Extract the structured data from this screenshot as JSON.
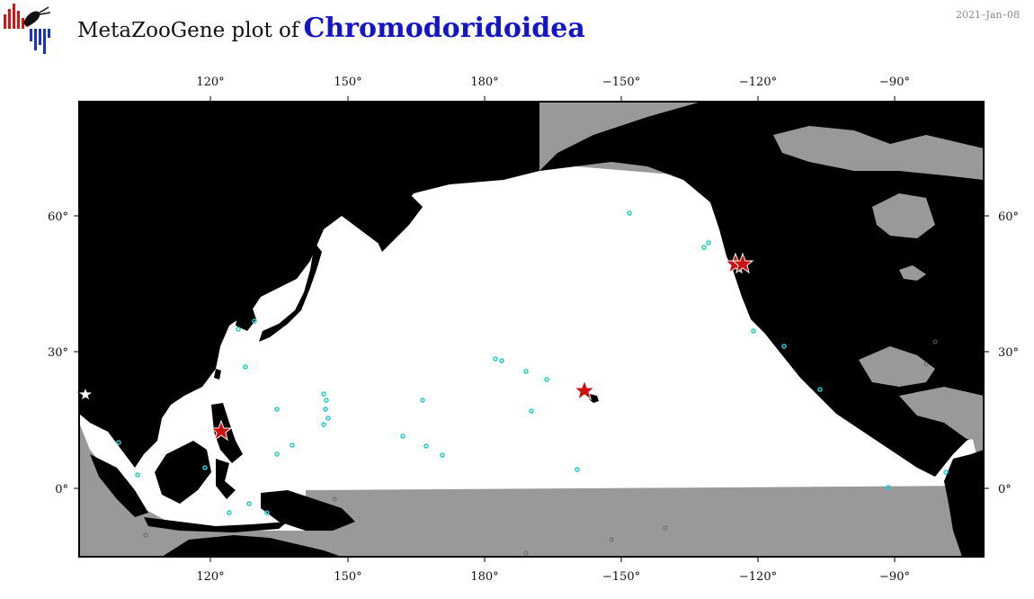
{
  "header": {
    "title_prefix": "MetaZooGene plot of",
    "taxon": "Chromodoridoidea",
    "date": "2021–Jan–08"
  },
  "map": {
    "top_lon_labels": [
      "120°",
      "150°",
      "180°",
      "−150°",
      "−120°",
      "−90°"
    ],
    "bottom_lon_labels": [
      "120°",
      "150°",
      "180°",
      "−150°",
      "−120°",
      "−90°"
    ],
    "left_lat_labels": [
      "60°",
      "30°",
      "0°"
    ],
    "right_lat_labels": [
      "60°",
      "30°",
      "0°"
    ],
    "colors": {
      "land": "#000000",
      "unsampled_ocean": "#999999",
      "sampled_ocean": "#ffffff",
      "record_star": "#cc1111",
      "sample_circle": "#22cccc",
      "grey_circle": "#666666",
      "title_accent": "#1515c8"
    },
    "legend_icons": [
      "red-star-icon",
      "cyan-circle-icon",
      "white-star-icon"
    ]
  }
}
